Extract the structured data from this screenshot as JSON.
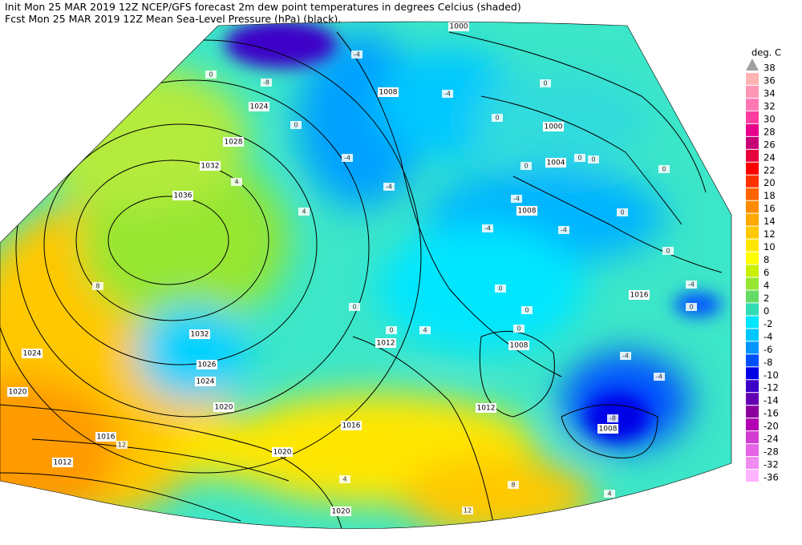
{
  "header": {
    "lines": [
      "Init  Mon 25 MAR 2019 12Z  NCEP/GFS forecast 2m dew point temperatures in degrees Celcius (shaded)",
      "Fcst  Mon 25 MAR 2019 12Z  Mean Sea-Level Pressure (hPa) (black)."
    ]
  },
  "legend": {
    "unit": "deg. C",
    "levels": [
      38,
      36,
      34,
      32,
      30,
      28,
      26,
      24,
      22,
      20,
      18,
      16,
      14,
      12,
      10,
      8,
      6,
      4,
      2,
      0,
      -2,
      -4,
      -6,
      -8,
      -10,
      -12,
      -14,
      -16,
      -20,
      -24,
      -28,
      -32,
      -36
    ],
    "colors": [
      "#a0a0a0",
      "#ffb4b4",
      "#ff96b4",
      "#ff78b4",
      "#ff3ca0",
      "#e6008c",
      "#c80078",
      "#e6003c",
      "#ff0000",
      "#ff3200",
      "#ff6400",
      "#ff8c00",
      "#ffaa00",
      "#ffc800",
      "#ffe600",
      "#ffff00",
      "#c8f000",
      "#96e632",
      "#64dc64",
      "#32dcb4",
      "#00e6ff",
      "#00c8ff",
      "#0096ff",
      "#0050ff",
      "#0000e6",
      "#3c00c8",
      "#6400b4",
      "#8c00a0",
      "#b400b4",
      "#d23cd2",
      "#e664e6",
      "#f08cf0",
      "#ffb4ff"
    ]
  },
  "map": {
    "pressure_labels": [
      1000,
      1024,
      1028,
      1032,
      1036,
      1032,
      1024,
      1026,
      1024,
      1020,
      1020,
      1016,
      1012,
      1020,
      1016,
      1020,
      1008,
      1000,
      1004,
      1008,
      1016,
      1008,
      1012,
      1012,
      1008
    ],
    "dewpoint_labels": [
      -4,
      -8,
      0,
      0,
      -4,
      -4,
      -4,
      0,
      0,
      0,
      0,
      0,
      0,
      -4,
      -4,
      -4,
      0,
      0,
      -4,
      0,
      0,
      0,
      0,
      4,
      8,
      4,
      -4,
      -4,
      -8,
      4,
      8,
      12,
      12,
      4,
      0,
      4,
      0
    ]
  }
}
